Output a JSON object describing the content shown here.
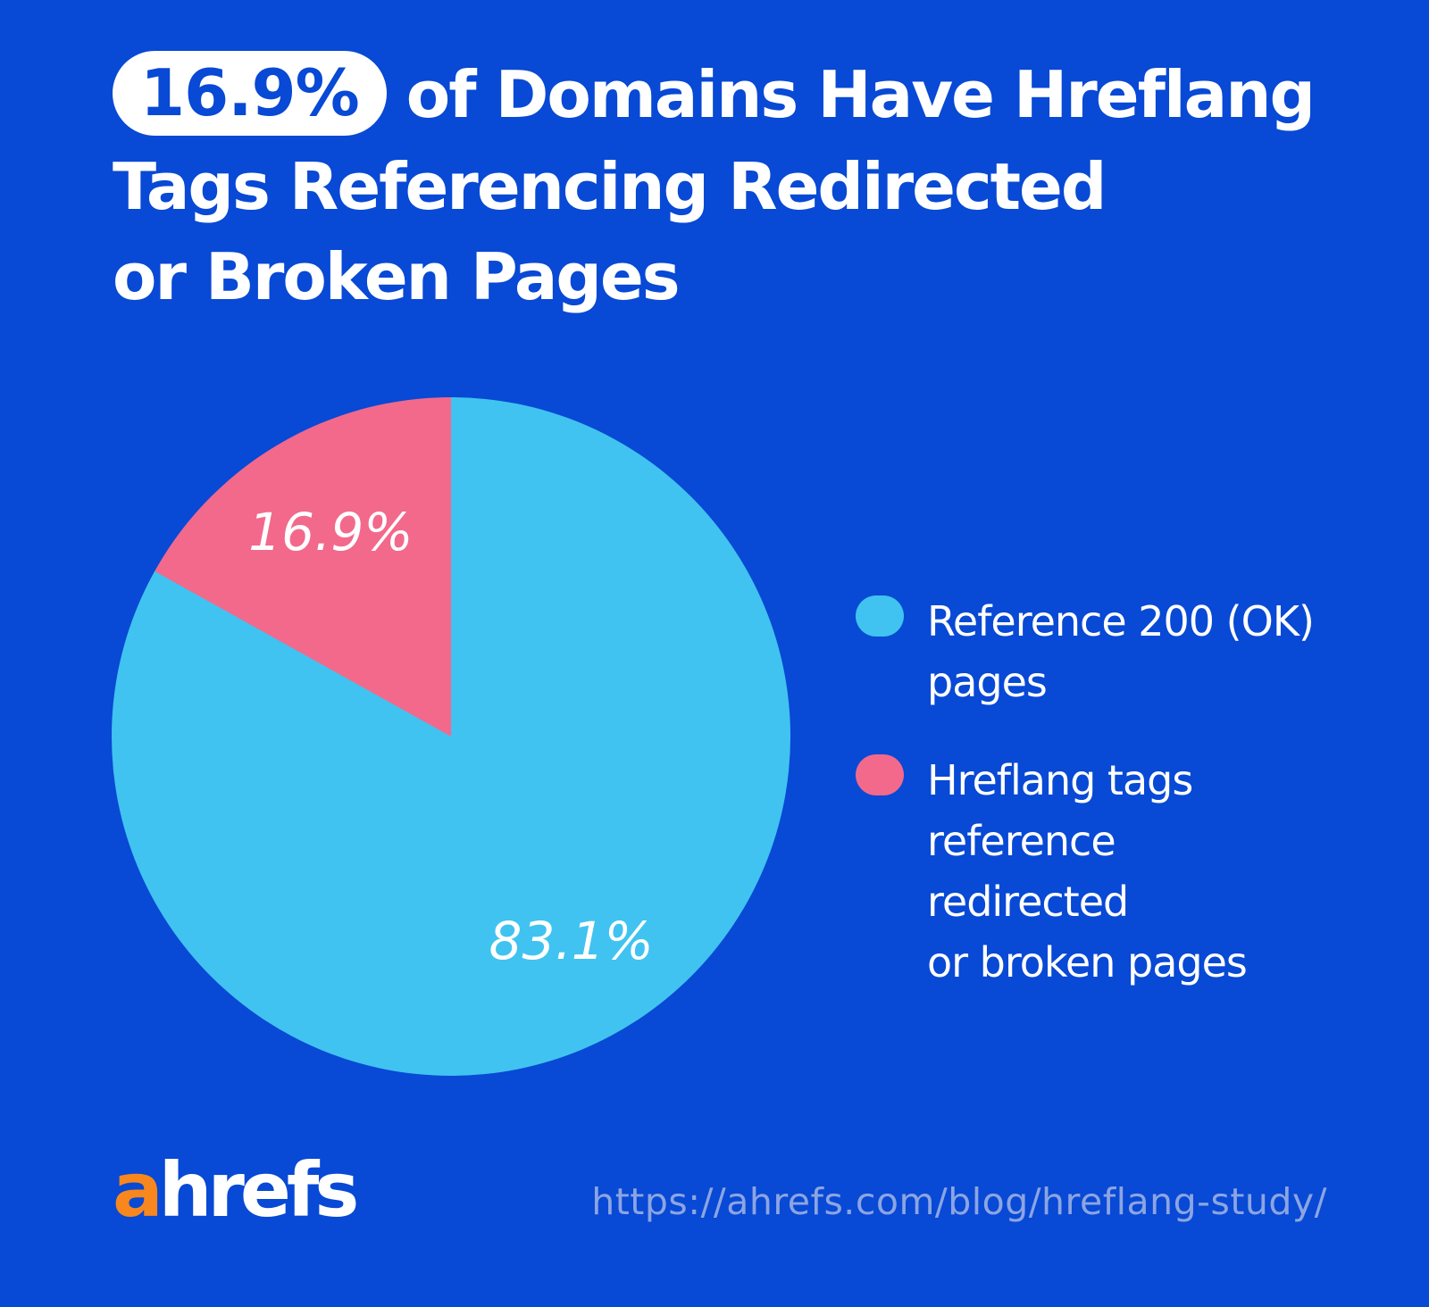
{
  "colors": {
    "background": "#0849D5",
    "pie_blue": "#40C3F0",
    "pie_pink": "#F2698C",
    "badge_bg": "#FFFFFF",
    "badge_text": "#0849D5",
    "logo_orange": "#F8871E",
    "url_text": "#8CA5E2",
    "text_white": "#FFFFFF"
  },
  "title": {
    "badge": "16.9%",
    "line1_after_badge": "of Domains Have Hreflang",
    "line2": "Tags Referencing Redirected",
    "line3": "or Broken Pages"
  },
  "chart_data": {
    "type": "pie",
    "title": "16.9% of Domains Have Hreflang Tags Referencing Redirected or Broken Pages",
    "start_angle_deg": 0,
    "direction": "clockwise",
    "legend_position": "right",
    "slices": [
      {
        "label": "Reference 200 (OK) pages",
        "value": 83.1,
        "data_label": "83.1%",
        "color": "#40C3F0"
      },
      {
        "label": "Hreflang tags reference redirected or broken pages",
        "value": 16.9,
        "data_label": "16.9%",
        "color": "#F2698C"
      }
    ]
  },
  "legend": {
    "items": [
      {
        "swatch_color": "#40C3F0",
        "text": "Reference 200 (OK)\npages"
      },
      {
        "swatch_color": "#F2698C",
        "text": "Hreflang tags\nreference redirected\nor broken pages"
      }
    ]
  },
  "footer": {
    "logo_a": "a",
    "logo_rest": "hrefs",
    "url": "https://ahrefs.com/blog/hreflang-study/"
  }
}
